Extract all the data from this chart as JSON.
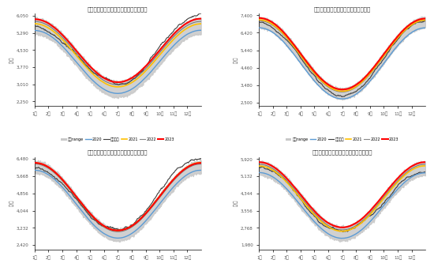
{
  "n_points": 365,
  "titles": [
    "国内大宗商品期货价格走势图（农产品）",
    "国内大宗商品期货价格走势图（油脂）",
    "国内大宗商品期货价格走势图（工业品）",
    "海外大宗商品期货价格走势图（农产品）"
  ],
  "ylabels": [
    "元/吨",
    "元/吨",
    "元/吨",
    "元/吨"
  ],
  "colors": {
    "gray_fill": "#c8c8c8",
    "mean_line": "#404040",
    "blue_line": "#5b9bd5",
    "orange_line": "#ffc000",
    "red_line": "#ff0000",
    "dark_line": "#555555"
  },
  "background_color": "#ffffff",
  "subplot_params": [
    {
      "base": 4200,
      "amp": 1400,
      "spread": 350,
      "offsets": [
        -200,
        100,
        200,
        300,
        -100
      ]
    },
    {
      "base": 5000,
      "amp": 2000,
      "spread": 300,
      "offsets": [
        -300,
        150,
        100,
        250,
        -150
      ]
    },
    {
      "base": 4500,
      "amp": 1600,
      "spread": 280,
      "offsets": [
        -150,
        200,
        150,
        200,
        -200
      ]
    },
    {
      "base": 4000,
      "amp": 1500,
      "spread": 320,
      "offsets": [
        -200,
        100,
        180,
        280,
        -100
      ]
    }
  ],
  "month_labels": [
    "1月",
    "2月",
    "3月",
    "4月",
    "5月",
    "6月",
    "7月",
    "8月",
    "9月",
    "10月",
    "11月",
    "12月"
  ]
}
